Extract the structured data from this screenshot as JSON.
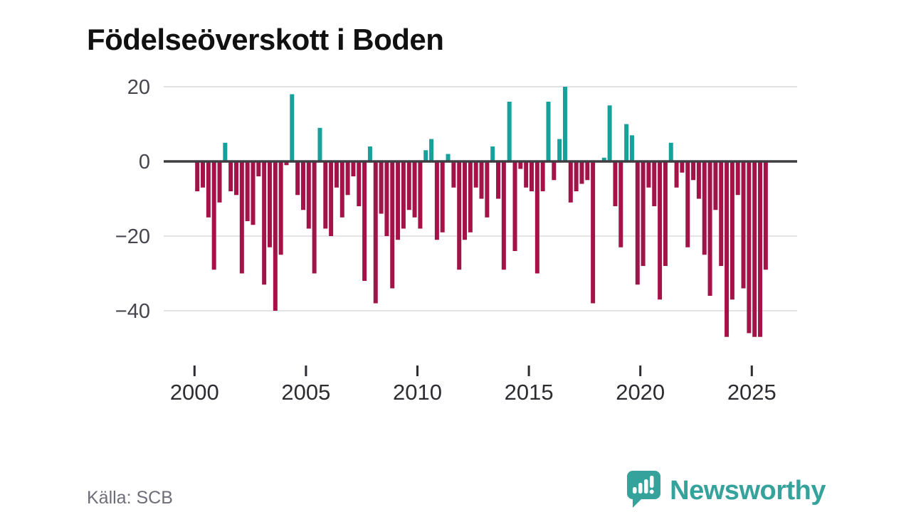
{
  "title": "Födelseöverskott i Boden",
  "source": "Källa: SCB",
  "brand": {
    "name": "Newsworthy"
  },
  "colors": {
    "positive_bar": "#16a29b",
    "negative_bar": "#a31348",
    "zero_line": "#3d3d42",
    "gridline": "#e3e3e5",
    "axis_text": "#45454d",
    "tick_text": "#2d2d31",
    "source_text": "#6e6e79",
    "brand_teal": "#35a29b"
  },
  "chart_data": {
    "type": "bar",
    "title": "Födelseöverskott i Boden",
    "frequency": "quarterly",
    "start_year": 2000,
    "start_quarter": 1,
    "ylim": [
      -50,
      24
    ],
    "grid": true,
    "y_axis": {
      "ticks": [
        20,
        0,
        -20,
        -40
      ]
    },
    "x_axis": {
      "tick_years": [
        2000,
        2005,
        2010,
        2015,
        2020,
        2025
      ]
    },
    "values": [
      -8,
      -7,
      -15,
      -29,
      -11,
      5,
      -8,
      -9,
      -30,
      -16,
      -17,
      -4,
      -33,
      -23,
      -40,
      -25,
      -1,
      18,
      -9,
      -13,
      -18,
      -30,
      9,
      -18,
      -20,
      -7,
      -15,
      -9,
      -4,
      -12,
      -32,
      4,
      -38,
      -14,
      -20,
      -34,
      -21,
      -18,
      -13,
      -15,
      -18,
      3,
      6,
      -21,
      -19,
      2,
      -7,
      -29,
      -21,
      -19,
      -7,
      -10,
      -15,
      4,
      -10,
      -29,
      16,
      -24,
      -2,
      -7,
      -8,
      -30,
      -8,
      16,
      -5,
      6,
      20,
      -11,
      -8,
      -6,
      -5,
      -38,
      0,
      1,
      15,
      -12,
      -23,
      10,
      7,
      -33,
      -28,
      -7,
      -12,
      -37,
      -28,
      5,
      -7,
      -3,
      -23,
      -5,
      -10,
      -25,
      -36,
      -13,
      -28,
      -47,
      -37,
      -9,
      -34,
      -46,
      -47,
      -47,
      -29
    ]
  }
}
